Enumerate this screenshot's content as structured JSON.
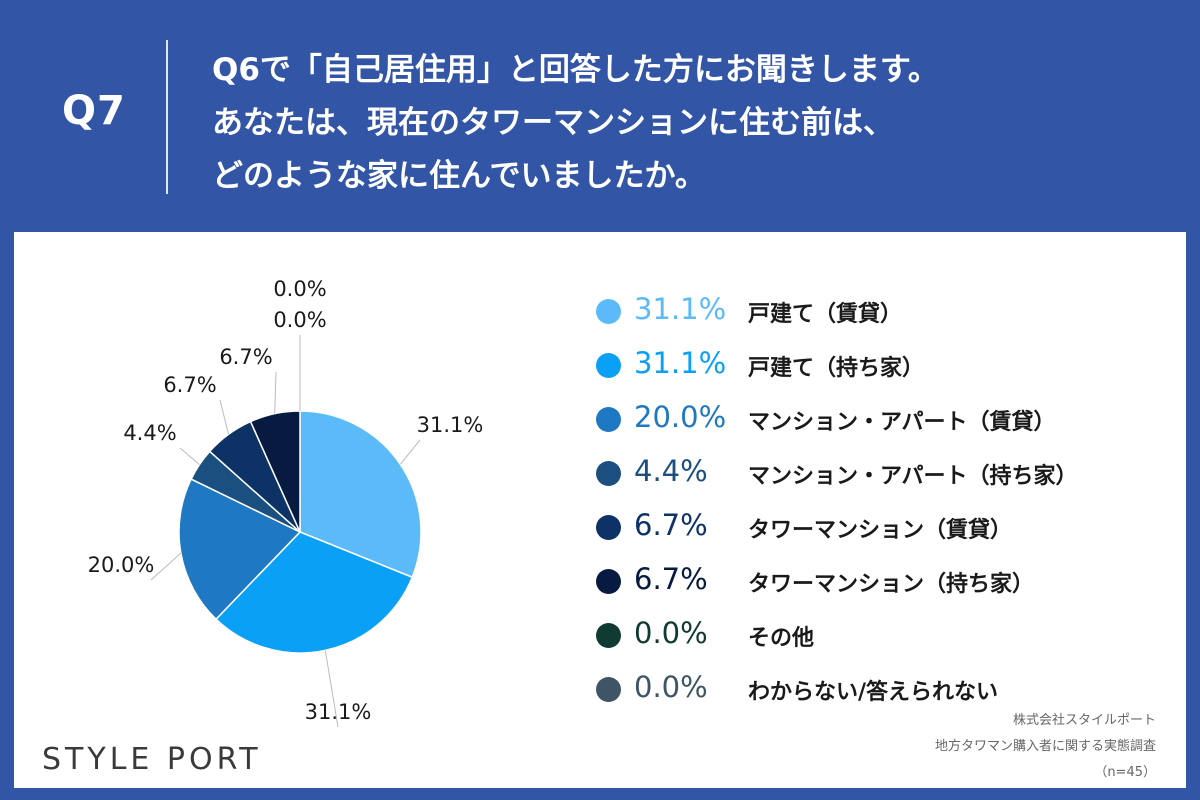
{
  "header": {
    "qnum": "Q7",
    "question_lines": [
      "Q6で「自己居住用」と回答した方にお聞きします。",
      "あなたは、現在のタワーマンションに住む前は、",
      "どのような家に住んでいましたか。"
    ]
  },
  "chart_data": {
    "type": "pie",
    "title": "",
    "categories": [
      "戸建て（賃貸）",
      "戸建て（持ち家）",
      "マンション・アパート（賃貸）",
      "マンション・アパート（持ち家）",
      "タワーマンション（賃貸）",
      "タワーマンション（持ち家）",
      "その他",
      "わからない/答えられない"
    ],
    "values": [
      31.1,
      31.1,
      20.0,
      4.4,
      6.7,
      6.7,
      0.0,
      0.0
    ],
    "value_labels": [
      "31.1%",
      "31.1%",
      "20.0%",
      "4.4%",
      "6.7%",
      "6.7%",
      "0.0%",
      "0.0%"
    ],
    "colors": [
      "#5bbbf8",
      "#0aa0f6",
      "#1e78c2",
      "#1a4f80",
      "#0d3266",
      "#071a3f",
      "#0f3b32",
      "#3f5566"
    ],
    "legend_placement": "right"
  },
  "logo": "STYLE PORT",
  "source": {
    "line1": "株式会社スタイルポート",
    "line2": "地方タワマン購入者に関する実態調査",
    "line3": "（n=45）"
  }
}
